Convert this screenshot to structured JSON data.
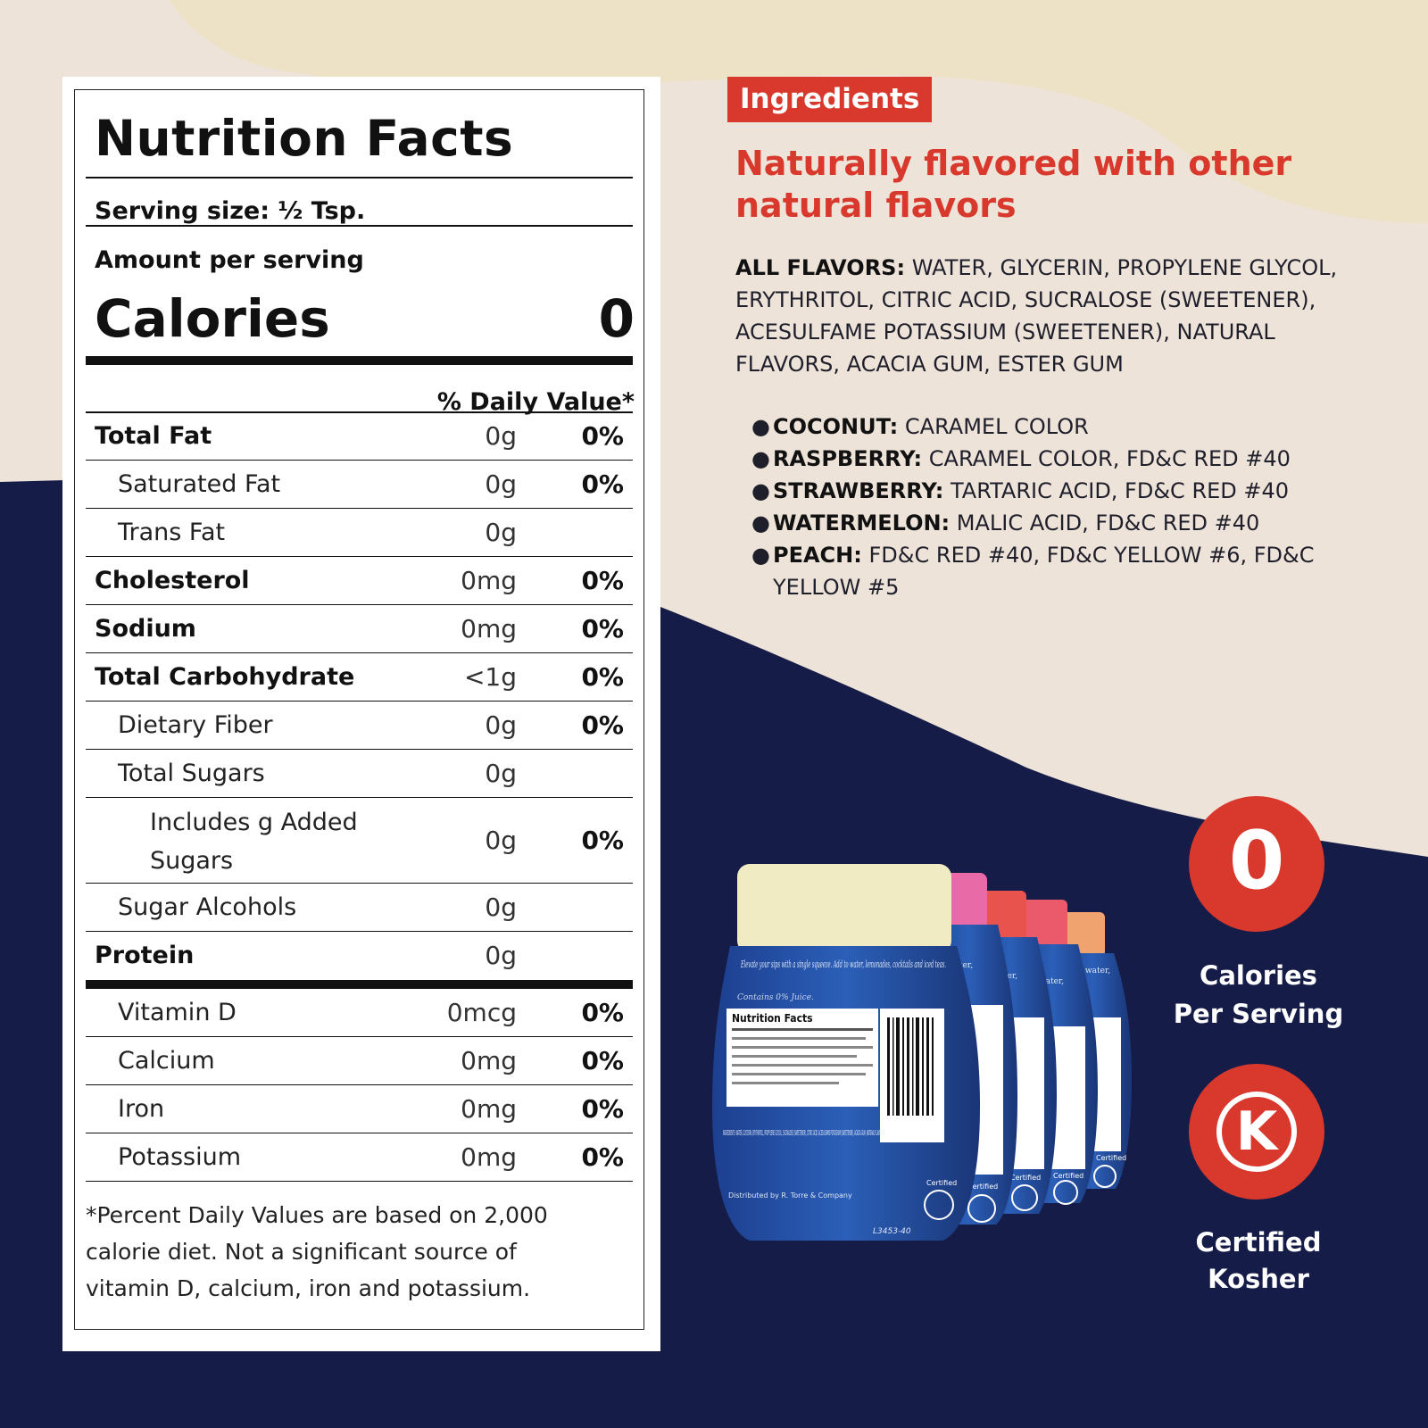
{
  "nutrition": {
    "title": "Nutrition Facts",
    "serving_size": "Serving size: ½ Tsp.",
    "amount_per_serving": "Amount per serving",
    "calories_label": "Calories",
    "calories_value": "0",
    "daily_value_header": "% Daily Value*",
    "rows": [
      {
        "label": "Total Fat",
        "amount": "0g",
        "dv": "0%"
      },
      {
        "label": "Saturated Fat",
        "amount": "0g",
        "dv": "0%"
      },
      {
        "label": "Trans Fat",
        "amount": "0g",
        "dv": ""
      },
      {
        "label": "Cholesterol",
        "amount": "0mg",
        "dv": "0%"
      },
      {
        "label": "Sodium",
        "amount": "0mg",
        "dv": "0%"
      },
      {
        "label": "Total Carbohydrate",
        "amount": "<1g",
        "dv": "0%"
      },
      {
        "label": "Dietary Fiber",
        "amount": "0g",
        "dv": "0%"
      },
      {
        "label": "Total Sugars",
        "amount": "0g",
        "dv": ""
      },
      {
        "label": "Includes g Added Sugars",
        "amount": "0g",
        "dv": "0%"
      },
      {
        "label": "Sugar Alcohols",
        "amount": "0g",
        "dv": ""
      },
      {
        "label": "Protein",
        "amount": "0g",
        "dv": ""
      },
      {
        "label": "Vitamin D",
        "amount": "0mcg",
        "dv": "0%"
      },
      {
        "label": "Calcium",
        "amount": "0mg",
        "dv": "0%"
      },
      {
        "label": "Iron",
        "amount": "0mg",
        "dv": "0%"
      },
      {
        "label": "Potassium",
        "amount": "0mg",
        "dv": "0%"
      }
    ],
    "footnote": "*Percent Daily Values are based on 2,000 calorie diet. Not a significant source of vitamin D, calcium, iron and potassium."
  },
  "ingredients": {
    "badge": "Ingredients",
    "headline": "Naturally flavored with other natural flavors",
    "all_flavors_label": "ALL FLAVORS:",
    "all_flavors_text": "WATER, GLYCERIN, PROPYLENE GLYCOL, ERYTHRITOL, CITRIC ACID, SUCRALOSE (SWEETENER), ACESULFAME POTASSIUM (SWEETENER), NATURAL FLAVORS, ACACIA GUM, ESTER GUM",
    "flavors": [
      {
        "name": "COCONUT:",
        "text": "CARAMEL COLOR"
      },
      {
        "name": "RASPBERRY:",
        "text": "CARAMEL COLOR, FD&C RED #40"
      },
      {
        "name": "STRAWBERRY:",
        "text": "TARTARIC ACID, FD&C RED #40"
      },
      {
        "name": "WATERMELON:",
        "text": "MALIC ACID, FD&C RED #40"
      },
      {
        "name": "PEACH:",
        "text": "FD&C RED #40, FD&C YELLOW #6, FD&C YELLOW #5"
      }
    ]
  },
  "bottle_label": {
    "tagline": "Elevate your sips with a single squeeze. Add to water, lemonades, cocktails and iced teas.",
    "juice_note": "Contains 0% Juice.",
    "nf_title": "Nutrition Facts",
    "ingredients_line": "INGREDIENTS: WATER, GLYCERIN, ERYTHRITOL, PROPYLENE GLYCOL, SUCRALOSE (SWEETENER), CITRIC ACID, ACESULFAME POTASSIUM (SWEETENER), ACACIA GUM, NATURAL FLAVORS.",
    "distributor": "Distributed by R. Torre & Company",
    "lot": "L3453-40",
    "side_text": "to water,",
    "certified": "Certified"
  },
  "badges": {
    "zero": "0",
    "calories_caption_1": "Calories",
    "calories_caption_2": "Per Serving",
    "kosher_letter": "K",
    "kosher_caption_1": "Certified",
    "kosher_caption_2": "Kosher"
  },
  "colors": {
    "navy": "#151c48",
    "cream": "#ede2c6",
    "blush": "#eee3d8",
    "accent_red": "#d9382c",
    "bottle_caps": [
      "#f1ebc4",
      "#e86aa6",
      "#e9534d",
      "#ea5a6a",
      "#f0a36e"
    ]
  }
}
